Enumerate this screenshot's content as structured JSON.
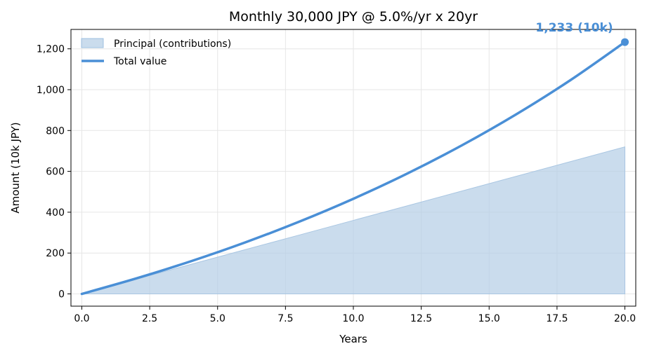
{
  "chart_data": {
    "type": "area",
    "title": "Monthly 30,000 JPY @ 5.0%/yr x 20yr",
    "xlabel": "Years",
    "ylabel": "Amount (10k JPY)",
    "xlim": [
      -0.4,
      20.4
    ],
    "ylim": [
      -60,
      1295
    ],
    "grid": true,
    "legend_position": "top-left",
    "x_ticks": [
      0,
      2.5,
      5,
      7.5,
      10,
      12.5,
      15,
      17.5,
      20
    ],
    "x_tick_labels": [
      "0.0",
      "2.5",
      "5.0",
      "7.5",
      "10.0",
      "12.5",
      "15.0",
      "17.5",
      "20.0"
    ],
    "y_ticks": [
      0,
      200,
      400,
      600,
      800,
      1000,
      1200
    ],
    "y_tick_labels": [
      "0",
      "200",
      "400",
      "600",
      "800",
      "1,000",
      "1,200"
    ],
    "x": [
      0,
      2,
      4,
      6,
      8,
      10,
      12,
      14,
      16,
      18,
      20
    ],
    "series": [
      {
        "name": "Principal (contributions)",
        "style": "area",
        "color": "#b3cde6",
        "values": [
          0,
          72,
          144,
          216,
          288,
          360,
          432,
          504,
          576,
          648,
          720
        ]
      },
      {
        "name": "Total value",
        "style": "line",
        "color": "#4a8fd6",
        "values": [
          0,
          75.6,
          159.1,
          251.3,
          353.3,
          465.8,
          590.2,
          727.7,
          879.5,
          1047.2,
          1233
        ]
      }
    ],
    "annotations": [
      {
        "text": "1,233 (10k)",
        "x": 20,
        "y": 1233,
        "color": "#4a8fd6"
      }
    ]
  }
}
